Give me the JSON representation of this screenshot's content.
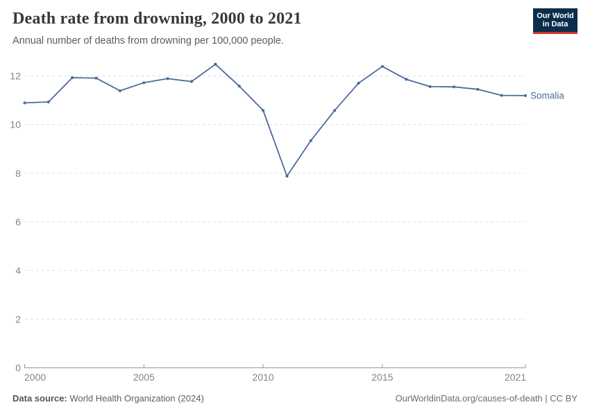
{
  "header": {
    "title": "Death rate from drowning, 2000 to 2021",
    "subtitle": "Annual number of deaths from drowning per 100,000 people."
  },
  "logo": {
    "line1": "Our World",
    "line2": "in Data"
  },
  "chart_data": {
    "type": "line",
    "title": "Death rate from drowning, 2000 to 2021",
    "subtitle": "Annual number of deaths from drowning per 100,000 people.",
    "x": [
      2000,
      2001,
      2002,
      2003,
      2004,
      2005,
      2006,
      2007,
      2008,
      2009,
      2010,
      2011,
      2012,
      2013,
      2014,
      2015,
      2016,
      2017,
      2018,
      2019,
      2020,
      2021
    ],
    "series": [
      {
        "name": "Somalia",
        "color": "#4C6A9C",
        "values": [
          10.89,
          10.93,
          11.93,
          11.91,
          11.39,
          11.72,
          11.89,
          11.77,
          12.48,
          11.58,
          10.58,
          7.88,
          9.34,
          10.58,
          11.7,
          12.39,
          11.86,
          11.56,
          11.55,
          11.45,
          11.2,
          11.19
        ]
      }
    ],
    "xlabel": "",
    "ylabel": "",
    "ylim": [
      0,
      12
    ],
    "yticks": [
      0,
      2,
      4,
      6,
      8,
      10,
      12
    ],
    "xticks": [
      2000,
      2005,
      2010,
      2015,
      2021
    ],
    "grid": "horizontal-dashed",
    "legend_position": "end-of-line",
    "axis_label_color": "#848484",
    "grid_color": "#dedede",
    "axis_color": "#999999"
  },
  "footer": {
    "source_label": "Data source:",
    "source_value": " World Health Organization (2024)",
    "credit": "OurWorldinData.org/causes-of-death | CC BY"
  }
}
